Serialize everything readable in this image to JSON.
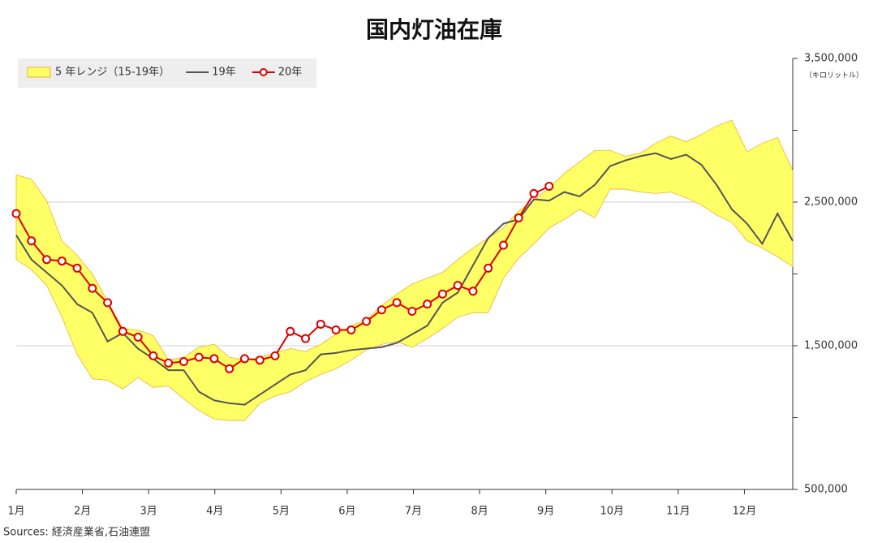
{
  "chart_data": {
    "type": "line",
    "title": "国内灯油在庫",
    "y_unit": "（キロリットル）",
    "source": "Sources: 経済産業省,石油連盟",
    "x": [
      1,
      1.23,
      1.46,
      1.69,
      1.92,
      2.15,
      2.38,
      2.61,
      2.84,
      3.07,
      3.3,
      3.53,
      3.76,
      3.99,
      4.22,
      4.45,
      4.68,
      4.91,
      5.14,
      5.37,
      5.6,
      5.83,
      6.06,
      6.29,
      6.52,
      6.75,
      6.98,
      7.21,
      7.44,
      7.67,
      7.9,
      8.13,
      8.36,
      8.59,
      8.82,
      9.05,
      9.28,
      9.51,
      9.74,
      9.97,
      10.2,
      10.43,
      10.66,
      10.89,
      11.12,
      11.35,
      11.58,
      11.81,
      12.04,
      12.27,
      12.5,
      12.73
    ],
    "xlim": [
      1,
      12.73
    ],
    "xticks": [
      {
        "value": 1,
        "label": "1月"
      },
      {
        "value": 2,
        "label": "2月"
      },
      {
        "value": 3,
        "label": "3月"
      },
      {
        "value": 4,
        "label": "4月"
      },
      {
        "value": 5,
        "label": "5月"
      },
      {
        "value": 6,
        "label": "6月"
      },
      {
        "value": 7,
        "label": "7月"
      },
      {
        "value": 8,
        "label": "8月"
      },
      {
        "value": 9,
        "label": "9月"
      },
      {
        "value": 10,
        "label": "10月"
      },
      {
        "value": 11,
        "label": "11月"
      },
      {
        "value": 12,
        "label": "12月"
      }
    ],
    "ylim": [
      500000,
      3500000
    ],
    "yticks": [
      {
        "value": 500000,
        "label": "500,000"
      },
      {
        "value": 1500000,
        "label": "1,500,000"
      },
      {
        "value": 2500000,
        "label": "2,500,000"
      },
      {
        "value": 3500000,
        "label": "3,500,000"
      }
    ],
    "yminor_ticks": [
      1000000,
      2000000,
      3000000
    ],
    "grid": true,
    "legend": "top-left",
    "series": [
      {
        "name": "5 年レンジ（15-19年）",
        "type": "band",
        "color": "#ffff66",
        "edge_color": "#f0b030",
        "upper": [
          2690000,
          2660000,
          2510000,
          2230000,
          2130000,
          2000000,
          1810000,
          1620000,
          1610000,
          1570000,
          1400000,
          1420000,
          1490000,
          1510000,
          1420000,
          1400000,
          1420000,
          1450000,
          1480000,
          1460000,
          1510000,
          1580000,
          1640000,
          1680000,
          1780000,
          1860000,
          1930000,
          1970000,
          2010000,
          2100000,
          2180000,
          2250000,
          2320000,
          2440000,
          2510000,
          2600000,
          2700000,
          2780000,
          2860000,
          2860000,
          2820000,
          2840000,
          2910000,
          2960000,
          2920000,
          2970000,
          3030000,
          3070000,
          2850000,
          2910000,
          2950000,
          2720000
        ],
        "lower": [
          2100000,
          2030000,
          1920000,
          1700000,
          1440000,
          1270000,
          1260000,
          1200000,
          1280000,
          1210000,
          1220000,
          1130000,
          1050000,
          990000,
          980000,
          980000,
          1100000,
          1150000,
          1180000,
          1250000,
          1300000,
          1340000,
          1400000,
          1470000,
          1510000,
          1530000,
          1490000,
          1550000,
          1620000,
          1700000,
          1730000,
          1730000,
          1970000,
          2110000,
          2210000,
          2320000,
          2380000,
          2450000,
          2390000,
          2590000,
          2590000,
          2570000,
          2560000,
          2570000,
          2530000,
          2480000,
          2410000,
          2360000,
          2230000,
          2180000,
          2120000,
          2050000
        ]
      },
      {
        "name": "19年",
        "type": "line",
        "color": "#555555",
        "values": [
          2270000,
          2100000,
          2010000,
          1920000,
          1790000,
          1730000,
          1530000,
          1590000,
          1480000,
          1410000,
          1330000,
          1330000,
          1180000,
          1120000,
          1100000,
          1090000,
          1160000,
          1230000,
          1300000,
          1330000,
          1440000,
          1450000,
          1470000,
          1480000,
          1490000,
          1520000,
          1580000,
          1640000,
          1800000,
          1870000,
          2060000,
          2250000,
          2350000,
          2380000,
          2520000,
          2510000,
          2570000,
          2540000,
          2620000,
          2750000,
          2790000,
          2820000,
          2840000,
          2800000,
          2830000,
          2760000,
          2620000,
          2450000,
          2350000,
          2210000,
          2420000,
          2230000
        ]
      },
      {
        "name": "20年",
        "type": "line",
        "color": "#e00000",
        "marker": true,
        "values": [
          2420000,
          2230000,
          2100000,
          2090000,
          2040000,
          1900000,
          1800000,
          1600000,
          1560000,
          1430000,
          1380000,
          1390000,
          1420000,
          1410000,
          1340000,
          1410000,
          1400000,
          1430000,
          1600000,
          1550000,
          1650000,
          1610000,
          1610000,
          1670000,
          1750000,
          1800000,
          1740000,
          1790000,
          1860000,
          1920000,
          1880000,
          2040000,
          2200000,
          2390000,
          2560000,
          2610000,
          null,
          null,
          null,
          null,
          null,
          null,
          null,
          null,
          null,
          null,
          null,
          null,
          null,
          null,
          null,
          null
        ]
      }
    ]
  }
}
